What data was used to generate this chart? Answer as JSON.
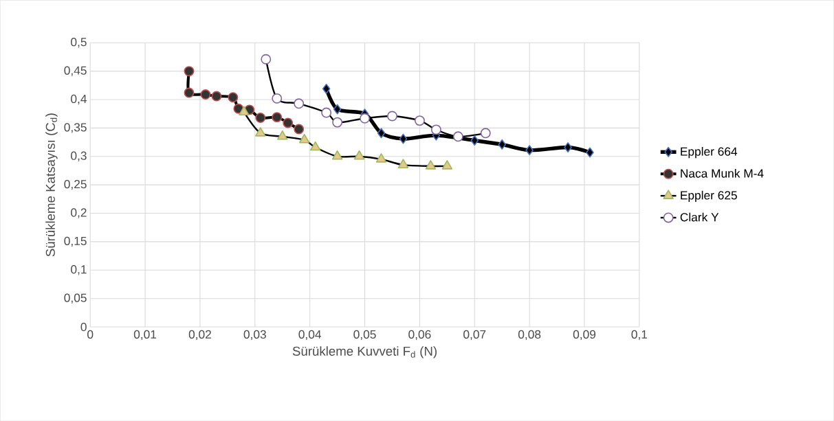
{
  "chart_data": {
    "type": "line",
    "xlabel": "Sürükleme Kuvveti F$_{d}$ (N)",
    "ylabel": "Sürükleme Katsayısı (C$_{d}$)",
    "xlim": [
      0,
      0.1
    ],
    "ylim": [
      0,
      0.5
    ],
    "xticks": [
      0,
      {
        "value": 0.01,
        "label": "0,01"
      },
      {
        "value": 0.02,
        "label": "0,02"
      },
      {
        "value": 0.03,
        "label": "0,03"
      },
      {
        "value": 0.04,
        "label": "0,04"
      },
      {
        "value": 0.05,
        "label": "0,05"
      },
      {
        "value": 0.06,
        "label": "0,06"
      },
      {
        "value": 0.07,
        "label": "0,07"
      },
      {
        "value": 0.08,
        "label": "0,08"
      },
      {
        "value": 0.09,
        "label": "0,09"
      },
      {
        "value": 0.1,
        "label": "0,1"
      }
    ],
    "yticks": [
      0,
      {
        "value": 0.05,
        "label": "0,05"
      },
      {
        "value": 0.1,
        "label": "0,1"
      },
      {
        "value": 0.15,
        "label": "0,15"
      },
      {
        "value": 0.2,
        "label": "0,2"
      },
      {
        "value": 0.25,
        "label": "0,25"
      },
      {
        "value": 0.3,
        "label": "0,3"
      },
      {
        "value": 0.35,
        "label": "0,35"
      },
      {
        "value": 0.4,
        "label": "0,4"
      },
      {
        "value": 0.45,
        "label": "0,45"
      },
      {
        "value": 0.5,
        "label": "0,5"
      }
    ],
    "grid": true,
    "legend": "right",
    "series": [
      {
        "name": "Eppler 664",
        "color": "#4472c4",
        "marker": "diamond",
        "x": [
          0.043,
          0.045,
          0.05,
          0.053,
          0.057,
          0.063,
          0.07,
          0.075,
          0.08,
          0.087,
          0.091
        ],
        "values": [
          0.419,
          0.383,
          0.375,
          0.341,
          0.331,
          0.337,
          0.328,
          0.321,
          0.311,
          0.316,
          0.307
        ]
      },
      {
        "name": "Naca Munk M-4",
        "color": "#c0504d",
        "marker": "circle",
        "x": [
          0.018,
          0.018,
          0.021,
          0.023,
          0.026,
          0.027,
          0.029,
          0.031,
          0.034,
          0.036,
          0.038
        ],
        "values": [
          0.45,
          0.412,
          0.409,
          0.406,
          0.404,
          0.384,
          0.382,
          0.368,
          0.369,
          0.359,
          0.348
        ]
      },
      {
        "name": "Eppler 625",
        "color": "#9bbb59",
        "marker": "triangle",
        "x": [
          0.028,
          0.031,
          0.035,
          0.039,
          0.041,
          0.045,
          0.049,
          0.053,
          0.057,
          0.062,
          0.065
        ],
        "values": [
          0.378,
          0.341,
          0.335,
          0.329,
          0.316,
          0.3,
          0.3,
          0.295,
          0.285,
          0.283,
          0.283
        ]
      },
      {
        "name": "Clark Y",
        "color": "#8064a2",
        "marker": "circle",
        "x": [
          0.032,
          0.034,
          0.038,
          0.043,
          0.045,
          0.05,
          0.055,
          0.06,
          0.063,
          0.067,
          0.072
        ],
        "values": [
          0.471,
          0.402,
          0.393,
          0.377,
          0.36,
          0.367,
          0.371,
          0.363,
          0.347,
          0.335,
          0.341
        ]
      }
    ]
  }
}
